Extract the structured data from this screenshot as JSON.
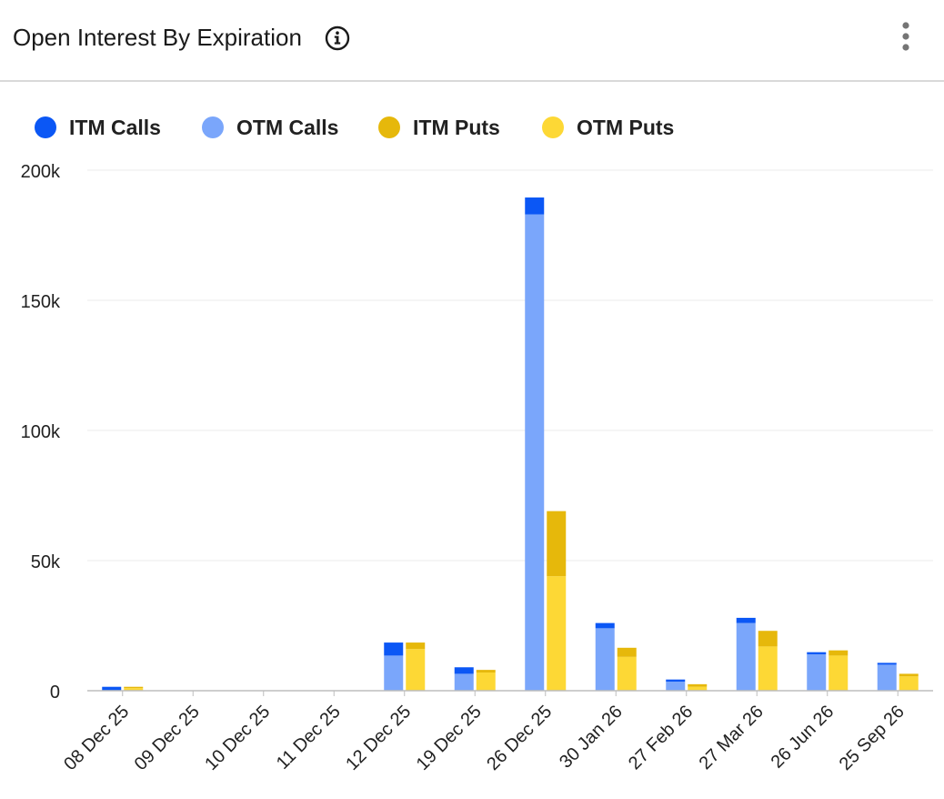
{
  "header": {
    "title": "Open Interest By Expiration",
    "info_icon": "info-icon",
    "menu_icon": "more-vert-icon"
  },
  "chart_data": {
    "type": "bar",
    "stacked": true,
    "grouped": true,
    "title": "Open Interest By Expiration",
    "xlabel": "",
    "ylabel": "",
    "ylim": [
      0,
      200000
    ],
    "yticks": [
      0,
      50000,
      100000,
      150000,
      200000
    ],
    "ytick_labels": [
      "0",
      "50k",
      "100k",
      "150k",
      "200k"
    ],
    "grid": true,
    "legend_position": "top-left",
    "categories": [
      "08 Dec 25",
      "09 Dec 25",
      "10 Dec 25",
      "11 Dec 25",
      "12 Dec 25",
      "19 Dec 25",
      "26 Dec 25",
      "30 Jan 26",
      "27 Feb 26",
      "27 Mar 26",
      "26 Jun 26",
      "25 Sep 26"
    ],
    "series": [
      {
        "name": "ITM Calls",
        "stack": "calls",
        "color": "#0b57f5",
        "values": [
          1500,
          0,
          0,
          0,
          5000,
          2500,
          6500,
          2000,
          800,
          2000,
          800,
          700
        ]
      },
      {
        "name": "OTM Calls",
        "stack": "calls",
        "color": "#7aa6fb",
        "values": [
          0,
          0,
          0,
          0,
          13500,
          6500,
          183000,
          24000,
          3500,
          26000,
          14000,
          10000
        ]
      },
      {
        "name": "ITM Puts",
        "stack": "puts",
        "color": "#e6b80b",
        "values": [
          500,
          0,
          0,
          0,
          2500,
          1000,
          25000,
          3500,
          1000,
          6000,
          2000,
          1000
        ]
      },
      {
        "name": "OTM Puts",
        "stack": "puts",
        "color": "#fdd835",
        "values": [
          1000,
          0,
          0,
          0,
          16000,
          7000,
          44000,
          13000,
          1500,
          17000,
          13500,
          5500
        ]
      }
    ]
  }
}
